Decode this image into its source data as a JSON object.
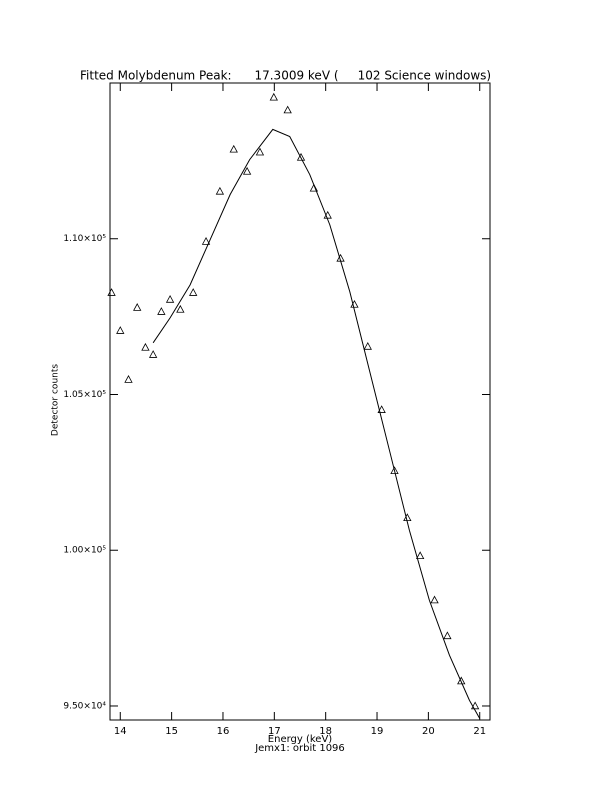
{
  "chart_data": {
    "type": "scatter",
    "title": "Fitted Molybdenum Peak:      17.3009 keV (     102 Science windows)",
    "x_label": "Energy (keV)",
    "subtitle": "Jemx1: orbit 1096",
    "y_label": "Detector counts",
    "xlim": [
      13.8,
      21.2
    ],
    "ylim": [
      94550,
      115000
    ],
    "xticks": [
      14,
      15,
      16,
      17,
      18,
      19,
      20,
      21
    ],
    "yticks": [
      {
        "value": 95000,
        "label": "9.50×10⁴"
      },
      {
        "value": 100000,
        "label": "1.00×10⁵"
      },
      {
        "value": 105000,
        "label": "1.05×10⁵"
      },
      {
        "value": 110000,
        "label": "1.10×10⁵"
      }
    ],
    "series": [
      {
        "type": "scatter",
        "marker": "triangle",
        "color": "#000000",
        "x": [
          13.83,
          14.0,
          14.16,
          14.33,
          14.49,
          14.64,
          14.8,
          14.97,
          15.17,
          15.42,
          15.67,
          15.94,
          16.21,
          16.47,
          16.72,
          16.99,
          17.26,
          17.52,
          17.77,
          18.04,
          18.29,
          18.56,
          18.82,
          19.09,
          19.34,
          19.59,
          19.84,
          20.12,
          20.37,
          20.64,
          20.91
        ],
        "values": [
          108260,
          107040,
          105470,
          107780,
          106500,
          106270,
          107650,
          108040,
          107720,
          108260,
          109900,
          111510,
          112860,
          112150,
          112770,
          114530,
          114120,
          112600,
          111610,
          110740,
          109360,
          107880,
          106530,
          104500,
          102540,
          101030,
          99810,
          98390,
          97240,
          95790,
          94990
        ]
      },
      {
        "type": "line",
        "color": "#000000",
        "x": [
          14.64,
          14.97,
          15.36,
          15.75,
          16.14,
          16.52,
          16.97,
          17.3,
          17.69,
          18.08,
          18.47,
          18.85,
          19.24,
          19.63,
          20.02,
          20.41,
          20.8,
          21.0
        ],
        "values": [
          106660,
          107460,
          108520,
          109970,
          111420,
          112540,
          113510,
          113280,
          112060,
          110450,
          108300,
          105790,
          103220,
          100640,
          98390,
          96630,
          95180,
          94600
        ]
      }
    ]
  }
}
